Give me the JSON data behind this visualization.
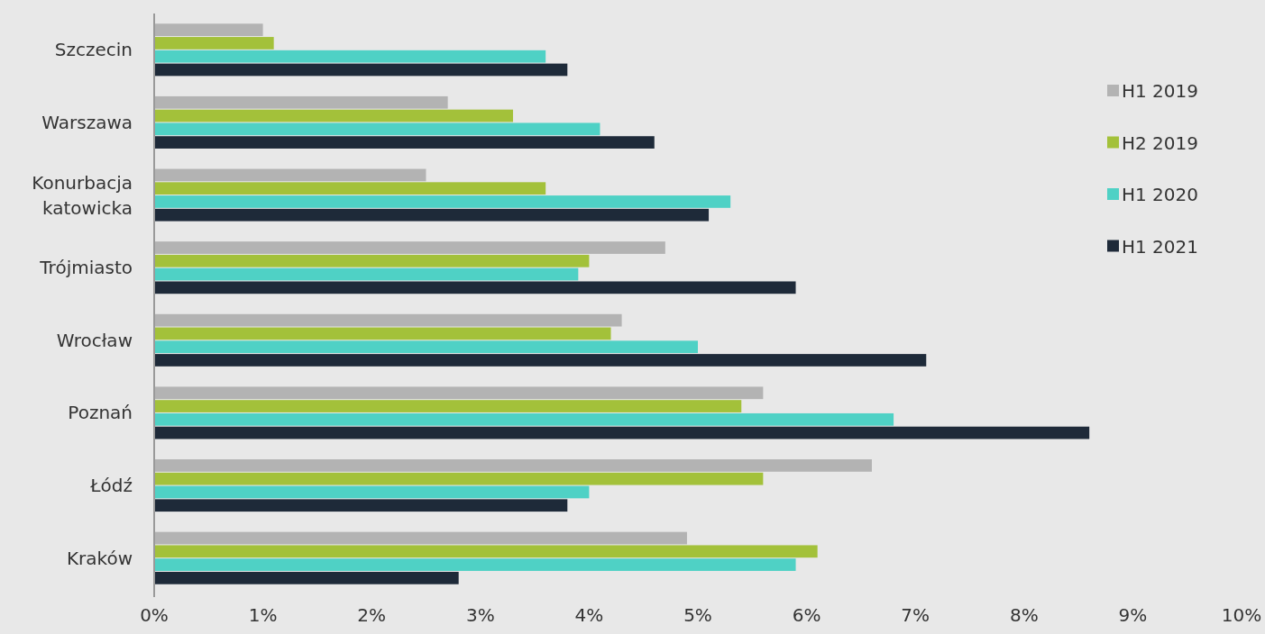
{
  "chart_data": {
    "type": "bar",
    "orientation": "horizontal",
    "categories": [
      "Szczecin",
      "Warszawa",
      "Konurbacja katowicka",
      "Trójmiasto",
      "Wrocław",
      "Poznań",
      "Łódź",
      "Kraków"
    ],
    "series": [
      {
        "name": "H1 2019",
        "color": "#b3b3b3",
        "values": [
          1.0,
          2.7,
          2.5,
          4.7,
          4.3,
          5.6,
          6.6,
          4.9
        ]
      },
      {
        "name": "H2 2019",
        "color": "#a3c13a",
        "values": [
          1.1,
          3.3,
          3.6,
          4.0,
          4.2,
          5.4,
          5.6,
          6.1
        ]
      },
      {
        "name": "H1 2020",
        "color": "#4fd1c5",
        "values": [
          3.6,
          4.1,
          5.3,
          3.9,
          5.0,
          6.8,
          4.0,
          5.9
        ]
      },
      {
        "name": "H1 2021",
        "color": "#1e2a39",
        "values": [
          3.8,
          4.6,
          5.1,
          5.9,
          7.1,
          8.6,
          3.8,
          2.8
        ]
      }
    ],
    "xlim": [
      0,
      10
    ],
    "xticks": [
      {
        "value": 0,
        "label": "0%"
      },
      {
        "value": 1,
        "label": "1%"
      },
      {
        "value": 2,
        "label": "2%"
      },
      {
        "value": 3,
        "label": "3%"
      },
      {
        "value": 4,
        "label": "4%"
      },
      {
        "value": 5,
        "label": "5%"
      },
      {
        "value": 6,
        "label": "6%"
      },
      {
        "value": 7,
        "label": "7%"
      },
      {
        "value": 8,
        "label": "8%"
      },
      {
        "value": 9,
        "label": "9%"
      },
      {
        "value": 10,
        "label": "10%"
      }
    ],
    "grid": false,
    "legend": "right"
  }
}
